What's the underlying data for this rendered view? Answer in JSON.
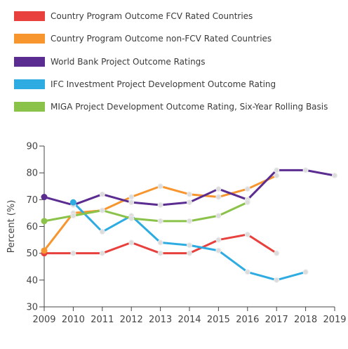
{
  "chart_data": {
    "type": "line",
    "title": "",
    "xlabel": "",
    "ylabel": "Percent (%)",
    "ylim": [
      30,
      90
    ],
    "yticks": [
      "30",
      "40",
      "50",
      "60",
      "70",
      "80",
      "90"
    ],
    "x": [
      "2009",
      "2010",
      "2011",
      "2012",
      "2013",
      "2014",
      "2015",
      "2016",
      "2017",
      "2018",
      "2019"
    ],
    "grid": false,
    "legend_position": "top",
    "series": [
      {
        "name": "Country Program Outcome FCV Rated Countries",
        "color": "#e8413d",
        "values": [
          50,
          50,
          50,
          54,
          50,
          50,
          55,
          57,
          50,
          null,
          null
        ]
      },
      {
        "name": "Country Program Outcome non-FCV Rated Countries",
        "color": "#f7962f",
        "values": [
          51,
          65,
          66,
          71,
          75,
          72,
          71,
          74,
          79,
          null,
          null
        ]
      },
      {
        "name": "World Bank Project Outcome Ratings",
        "color": "#5c2d91",
        "values": [
          71,
          68,
          72,
          69,
          68,
          69,
          74,
          70,
          81,
          81,
          79
        ]
      },
      {
        "name": "IFC Investment Project Development Outcome Rating",
        "color": "#2eace2",
        "values": [
          null,
          69,
          58,
          64,
          54,
          53,
          51,
          43,
          40,
          43,
          null
        ]
      },
      {
        "name": "MIGA Project Development Outcome Rating, Six-Year Rolling Basis",
        "color": "#8bc34a",
        "values": [
          62,
          64,
          66,
          63,
          62,
          62,
          64,
          69,
          null,
          null,
          null
        ]
      }
    ]
  }
}
